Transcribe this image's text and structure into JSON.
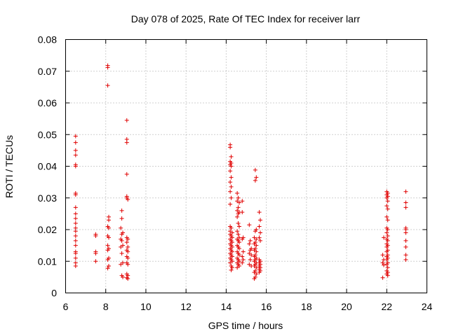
{
  "chart_data": {
    "type": "scatter",
    "title": "Day 078 of 2025, Rate Of TEC Index for receiver larr",
    "xlabel": "GPS time / hours",
    "ylabel": "ROTI / TECUs",
    "xlim": [
      6,
      24
    ],
    "ylim": [
      0,
      0.08
    ],
    "xticks": [
      "6",
      "8",
      "10",
      "12",
      "14",
      "16",
      "18",
      "20",
      "22",
      "24"
    ],
    "yticks": [
      "0",
      "0.01",
      "0.02",
      "0.03",
      "0.04",
      "0.05",
      "0.06",
      "0.07",
      "0.08"
    ],
    "grid": true,
    "marker": "+",
    "color": "#e00000",
    "series": [
      {
        "points": [
          [
            6.5,
            0.0495
          ],
          [
            6.5,
            0.0475
          ],
          [
            6.5,
            0.045
          ],
          [
            6.5,
            0.0435
          ],
          [
            6.5,
            0.0405
          ],
          [
            6.5,
            0.04
          ],
          [
            6.5,
            0.0315
          ],
          [
            6.5,
            0.031
          ],
          [
            6.5,
            0.027
          ],
          [
            6.5,
            0.025
          ],
          [
            6.5,
            0.0235
          ],
          [
            6.5,
            0.022
          ],
          [
            6.5,
            0.0205
          ],
          [
            6.5,
            0.0195
          ],
          [
            6.5,
            0.018
          ],
          [
            6.5,
            0.0165
          ],
          [
            6.5,
            0.015
          ],
          [
            6.5,
            0.013
          ],
          [
            6.5,
            0.0125
          ],
          [
            6.5,
            0.011
          ],
          [
            6.5,
            0.0095
          ],
          [
            6.5,
            0.0085
          ],
          [
            7.5,
            0.0185
          ],
          [
            7.5,
            0.018
          ],
          [
            7.5,
            0.013
          ],
          [
            7.5,
            0.0125
          ],
          [
            7.5,
            0.01
          ],
          [
            8.1,
            0.0718
          ],
          [
            8.1,
            0.0712
          ],
          [
            8.1,
            0.0655
          ],
          [
            8.15,
            0.024
          ],
          [
            8.15,
            0.023
          ],
          [
            8.1,
            0.021
          ],
          [
            8.15,
            0.0205
          ],
          [
            8.1,
            0.018
          ],
          [
            8.15,
            0.0175
          ],
          [
            8.1,
            0.015
          ],
          [
            8.15,
            0.014
          ],
          [
            8.1,
            0.0135
          ],
          [
            8.15,
            0.011
          ],
          [
            8.1,
            0.0105
          ],
          [
            8.15,
            0.0085
          ],
          [
            8.1,
            0.0078
          ],
          [
            8.8,
            0.026
          ],
          [
            8.8,
            0.0235
          ],
          [
            8.75,
            0.0205
          ],
          [
            8.85,
            0.019
          ],
          [
            8.8,
            0.0185
          ],
          [
            8.75,
            0.017
          ],
          [
            8.8,
            0.0165
          ],
          [
            8.85,
            0.015
          ],
          [
            8.75,
            0.0145
          ],
          [
            8.8,
            0.0125
          ],
          [
            8.85,
            0.0095
          ],
          [
            8.75,
            0.009
          ],
          [
            8.8,
            0.0055
          ],
          [
            8.85,
            0.005
          ],
          [
            9.05,
            0.0545
          ],
          [
            9.05,
            0.0485
          ],
          [
            9.05,
            0.0475
          ],
          [
            9.05,
            0.0375
          ],
          [
            9.05,
            0.0305
          ],
          [
            9.05,
            0.03
          ],
          [
            9.1,
            0.0295
          ],
          [
            9.05,
            0.0175
          ],
          [
            9.1,
            0.017
          ],
          [
            9.05,
            0.016
          ],
          [
            9.1,
            0.0145
          ],
          [
            9.05,
            0.0135
          ],
          [
            9.1,
            0.013
          ],
          [
            9.05,
            0.0115
          ],
          [
            9.1,
            0.011
          ],
          [
            9.05,
            0.0095
          ],
          [
            9.1,
            0.009
          ],
          [
            9.05,
            0.006
          ],
          [
            9.1,
            0.0055
          ],
          [
            9.05,
            0.0048
          ],
          [
            9.1,
            0.0045
          ],
          [
            14.2,
            0.0468
          ],
          [
            14.2,
            0.046
          ],
          [
            14.25,
            0.043
          ],
          [
            14.2,
            0.0415
          ],
          [
            14.25,
            0.041
          ],
          [
            14.2,
            0.0405
          ],
          [
            14.25,
            0.04
          ],
          [
            14.2,
            0.0385
          ],
          [
            14.25,
            0.0365
          ],
          [
            14.2,
            0.035
          ],
          [
            14.25,
            0.0335
          ],
          [
            14.2,
            0.032
          ],
          [
            14.25,
            0.03
          ],
          [
            14.2,
            0.028
          ],
          [
            14.2,
            0.021
          ],
          [
            14.25,
            0.0205
          ],
          [
            14.2,
            0.0195
          ],
          [
            14.3,
            0.019
          ],
          [
            14.2,
            0.0185
          ],
          [
            14.25,
            0.018
          ],
          [
            14.3,
            0.0175
          ],
          [
            14.2,
            0.017
          ],
          [
            14.25,
            0.0165
          ],
          [
            14.3,
            0.016
          ],
          [
            14.2,
            0.0155
          ],
          [
            14.25,
            0.015
          ],
          [
            14.3,
            0.0145
          ],
          [
            14.2,
            0.014
          ],
          [
            14.25,
            0.0135
          ],
          [
            14.3,
            0.013
          ],
          [
            14.2,
            0.0125
          ],
          [
            14.25,
            0.012
          ],
          [
            14.3,
            0.0115
          ],
          [
            14.2,
            0.011
          ],
          [
            14.25,
            0.0105
          ],
          [
            14.3,
            0.01
          ],
          [
            14.2,
            0.0095
          ],
          [
            14.25,
            0.0085
          ],
          [
            14.3,
            0.008
          ],
          [
            14.25,
            0.0072
          ],
          [
            14.55,
            0.0315
          ],
          [
            14.6,
            0.03
          ],
          [
            14.55,
            0.029
          ],
          [
            14.65,
            0.0285
          ],
          [
            14.6,
            0.027
          ],
          [
            14.55,
            0.026
          ],
          [
            14.65,
            0.0255
          ],
          [
            14.6,
            0.025
          ],
          [
            14.55,
            0.024
          ],
          [
            14.6,
            0.022
          ],
          [
            14.65,
            0.021
          ],
          [
            14.55,
            0.0195
          ],
          [
            14.6,
            0.0185
          ],
          [
            14.65,
            0.0175
          ],
          [
            14.55,
            0.017
          ],
          [
            14.6,
            0.0165
          ],
          [
            14.65,
            0.016
          ],
          [
            14.55,
            0.015
          ],
          [
            14.6,
            0.0145
          ],
          [
            14.65,
            0.014
          ],
          [
            14.55,
            0.013
          ],
          [
            14.6,
            0.0125
          ],
          [
            14.65,
            0.012
          ],
          [
            14.55,
            0.011
          ],
          [
            14.6,
            0.0105
          ],
          [
            14.65,
            0.01
          ],
          [
            14.55,
            0.0095
          ],
          [
            14.6,
            0.009
          ],
          [
            14.65,
            0.0085
          ],
          [
            14.55,
            0.008
          ],
          [
            14.8,
            0.029
          ],
          [
            14.8,
            0.0255
          ],
          [
            14.85,
            0.0175
          ],
          [
            14.8,
            0.017
          ],
          [
            14.85,
            0.013
          ],
          [
            14.8,
            0.0115
          ],
          [
            14.85,
            0.0105
          ],
          [
            14.8,
            0.0095
          ],
          [
            15.15,
            0.0215
          ],
          [
            15.2,
            0.0165
          ],
          [
            15.15,
            0.0155
          ],
          [
            15.25,
            0.014
          ],
          [
            15.2,
            0.0135
          ],
          [
            15.15,
            0.0125
          ],
          [
            15.25,
            0.012
          ],
          [
            15.2,
            0.0105
          ],
          [
            15.15,
            0.009
          ],
          [
            15.25,
            0.0085
          ],
          [
            15.45,
            0.0388
          ],
          [
            15.5,
            0.0365
          ],
          [
            15.45,
            0.0355
          ],
          [
            15.5,
            0.02
          ],
          [
            15.45,
            0.0195
          ],
          [
            15.4,
            0.0175
          ],
          [
            15.5,
            0.017
          ],
          [
            15.45,
            0.016
          ],
          [
            15.4,
            0.0155
          ],
          [
            15.5,
            0.015
          ],
          [
            15.45,
            0.014
          ],
          [
            15.4,
            0.0135
          ],
          [
            15.5,
            0.013
          ],
          [
            15.45,
            0.012
          ],
          [
            15.4,
            0.0115
          ],
          [
            15.5,
            0.011
          ],
          [
            15.45,
            0.0105
          ],
          [
            15.4,
            0.01
          ],
          [
            15.5,
            0.0095
          ],
          [
            15.45,
            0.009
          ],
          [
            15.4,
            0.0085
          ],
          [
            15.5,
            0.008
          ],
          [
            15.45,
            0.007
          ],
          [
            15.4,
            0.0065
          ],
          [
            15.5,
            0.006
          ],
          [
            15.45,
            0.005
          ],
          [
            15.4,
            0.0045
          ],
          [
            15.65,
            0.0255
          ],
          [
            15.7,
            0.023
          ],
          [
            15.65,
            0.021
          ],
          [
            15.7,
            0.019
          ],
          [
            15.65,
            0.0175
          ],
          [
            15.7,
            0.0165
          ],
          [
            15.65,
            0.0105
          ],
          [
            15.7,
            0.01
          ],
          [
            15.65,
            0.0095
          ],
          [
            15.7,
            0.009
          ],
          [
            15.65,
            0.0085
          ],
          [
            15.7,
            0.008
          ],
          [
            15.65,
            0.0075
          ],
          [
            15.7,
            0.007
          ],
          [
            15.65,
            0.0065
          ],
          [
            21.85,
            0.0175
          ],
          [
            21.8,
            0.012
          ],
          [
            21.85,
            0.0105
          ],
          [
            21.8,
            0.0095
          ],
          [
            21.85,
            0.0088
          ],
          [
            21.8,
            0.0048
          ],
          [
            22.0,
            0.032
          ],
          [
            22.05,
            0.0315
          ],
          [
            22.0,
            0.031
          ],
          [
            22.05,
            0.0305
          ],
          [
            22.0,
            0.03
          ],
          [
            22.05,
            0.029
          ],
          [
            22.0,
            0.0275
          ],
          [
            22.05,
            0.0265
          ],
          [
            22.0,
            0.024
          ],
          [
            22.05,
            0.023
          ],
          [
            22.0,
            0.0205
          ],
          [
            22.05,
            0.02
          ],
          [
            22.0,
            0.019
          ],
          [
            22.05,
            0.018
          ],
          [
            22.0,
            0.017
          ],
          [
            22.05,
            0.0165
          ],
          [
            22.0,
            0.0155
          ],
          [
            22.05,
            0.015
          ],
          [
            22.0,
            0.0145
          ],
          [
            22.05,
            0.0135
          ],
          [
            22.0,
            0.013
          ],
          [
            22.05,
            0.012
          ],
          [
            22.0,
            0.0115
          ],
          [
            22.05,
            0.011
          ],
          [
            22.0,
            0.0105
          ],
          [
            22.05,
            0.0095
          ],
          [
            22.0,
            0.009
          ],
          [
            22.05,
            0.008
          ],
          [
            22.0,
            0.007
          ],
          [
            22.05,
            0.0065
          ],
          [
            22.0,
            0.006
          ],
          [
            22.05,
            0.0055
          ],
          [
            22.95,
            0.032
          ],
          [
            22.95,
            0.0285
          ],
          [
            22.95,
            0.027
          ],
          [
            22.95,
            0.0205
          ],
          [
            22.95,
            0.02
          ],
          [
            22.95,
            0.019
          ],
          [
            22.95,
            0.0165
          ],
          [
            22.95,
            0.0145
          ],
          [
            22.95,
            0.012
          ],
          [
            22.95,
            0.0105
          ]
        ]
      }
    ]
  }
}
